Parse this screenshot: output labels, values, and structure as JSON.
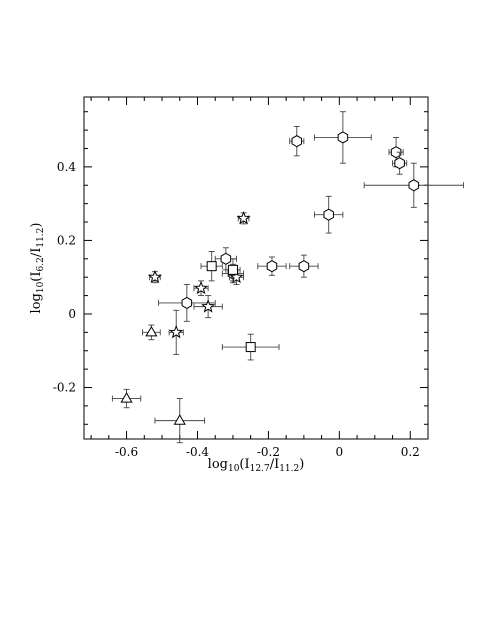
{
  "chart_data": {
    "type": "scatter",
    "xlabel": "log10(I12.7/I11.2)",
    "xlabel_parts": {
      "prefix": "log",
      "base": "10",
      "open": "(I",
      "num_sub": "12.7",
      "slash": "/I",
      "den_sub": "11.2",
      "close": ")"
    },
    "ylabel": "log10(I6.2/I11.2)",
    "ylabel_parts": {
      "prefix": "log",
      "base": "10",
      "open": "(I",
      "num_sub": "6.2",
      "slash": "/I",
      "den_sub": "11.2",
      "close": ")"
    },
    "xlim": [
      -0.72,
      0.25
    ],
    "ylim": [
      -0.34,
      0.59
    ],
    "x_ticks": [
      {
        "value": -0.6,
        "label": "-0.6"
      },
      {
        "value": -0.4,
        "label": "-0.4"
      },
      {
        "value": -0.2,
        "label": "-0.2"
      },
      {
        "value": 0,
        "label": "0"
      },
      {
        "value": 0.2,
        "label": "0.2"
      }
    ],
    "y_ticks": [
      {
        "value": -0.2,
        "label": "-0.2"
      },
      {
        "value": 0,
        "label": "0"
      },
      {
        "value": 0.2,
        "label": "0.2"
      },
      {
        "value": 0.4,
        "label": "0.4"
      }
    ],
    "grid": false,
    "series": [
      {
        "marker": "hexagon",
        "points": [
          {
            "x": -0.12,
            "y": 0.47,
            "xerr": 0.02,
            "yerr": 0.04
          },
          {
            "x": 0.01,
            "y": 0.48,
            "xerr": 0.08,
            "yerr": 0.07
          },
          {
            "x": 0.16,
            "y": 0.44,
            "xerr": 0.02,
            "yerr": 0.04
          },
          {
            "x": 0.17,
            "y": 0.41,
            "xerr": 0.02,
            "yerr": 0.03
          },
          {
            "x": 0.21,
            "y": 0.35,
            "xerr": 0.14,
            "yerr": 0.06
          },
          {
            "x": -0.03,
            "y": 0.27,
            "xerr": 0.04,
            "yerr": 0.05
          },
          {
            "x": -0.19,
            "y": 0.13,
            "xerr": 0.04,
            "yerr": 0.025
          },
          {
            "x": -0.1,
            "y": 0.13,
            "xerr": 0.04,
            "yerr": 0.03
          },
          {
            "x": -0.32,
            "y": 0.15,
            "xerr": 0.03,
            "yerr": 0.03
          },
          {
            "x": -0.3,
            "y": 0.11,
            "xerr": 0.03,
            "yerr": 0.025
          },
          {
            "x": -0.43,
            "y": 0.03,
            "xerr": 0.08,
            "yerr": 0.05
          }
        ]
      },
      {
        "marker": "star",
        "points": [
          {
            "x": -0.27,
            "y": 0.26,
            "xerr": 0.015,
            "yerr": 0.015
          },
          {
            "x": -0.52,
            "y": 0.1,
            "xerr": 0.015,
            "yerr": 0.015
          },
          {
            "x": -0.39,
            "y": 0.07,
            "xerr": 0.02,
            "yerr": 0.02
          },
          {
            "x": -0.29,
            "y": 0.1,
            "xerr": 0.02,
            "yerr": 0.02
          },
          {
            "x": -0.37,
            "y": 0.02,
            "xerr": 0.04,
            "yerr": 0.03
          },
          {
            "x": -0.46,
            "y": -0.05,
            "xerr": 0.02,
            "yerr": 0.06
          }
        ]
      },
      {
        "marker": "square",
        "points": [
          {
            "x": -0.36,
            "y": 0.13,
            "xerr": 0.03,
            "yerr": 0.04
          },
          {
            "x": -0.3,
            "y": 0.12,
            "xerr": 0.02,
            "yerr": 0.03
          },
          {
            "x": -0.25,
            "y": -0.09,
            "xerr": 0.08,
            "yerr": 0.035
          }
        ]
      },
      {
        "marker": "triangle",
        "points": [
          {
            "x": -0.53,
            "y": -0.05,
            "xerr": 0.025,
            "yerr": 0.02
          },
          {
            "x": -0.6,
            "y": -0.23,
            "xerr": 0.04,
            "yerr": 0.025
          },
          {
            "x": -0.45,
            "y": -0.29,
            "xerr": 0.07,
            "yerr": 0.06
          }
        ]
      }
    ]
  }
}
